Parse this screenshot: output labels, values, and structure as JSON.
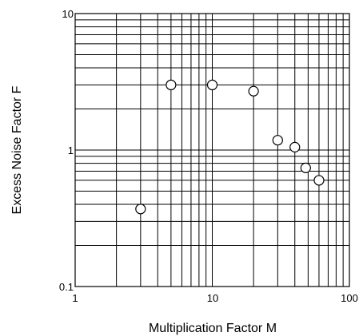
{
  "chart_data": {
    "type": "scatter",
    "title": "",
    "xlabel": "Multiplication Factor M",
    "ylabel": "Excess Noise Factor F",
    "x_scale": "log",
    "y_scale": "log",
    "xlim": [
      1,
      100
    ],
    "ylim": [
      0.1,
      10
    ],
    "grid": true,
    "x_ticks": [
      "1",
      "10",
      "100"
    ],
    "y_ticks": [
      "0.1",
      "1",
      "10"
    ],
    "marker": "open-circle",
    "points": [
      {
        "x": 3,
        "y": 0.37
      },
      {
        "x": 5,
        "y": 3.0
      },
      {
        "x": 10,
        "y": 3.0
      },
      {
        "x": 20,
        "y": 2.7
      },
      {
        "x": 30,
        "y": 1.18
      },
      {
        "x": 40,
        "y": 1.05
      },
      {
        "x": 48,
        "y": 0.74
      },
      {
        "x": 60,
        "y": 0.6
      }
    ]
  }
}
